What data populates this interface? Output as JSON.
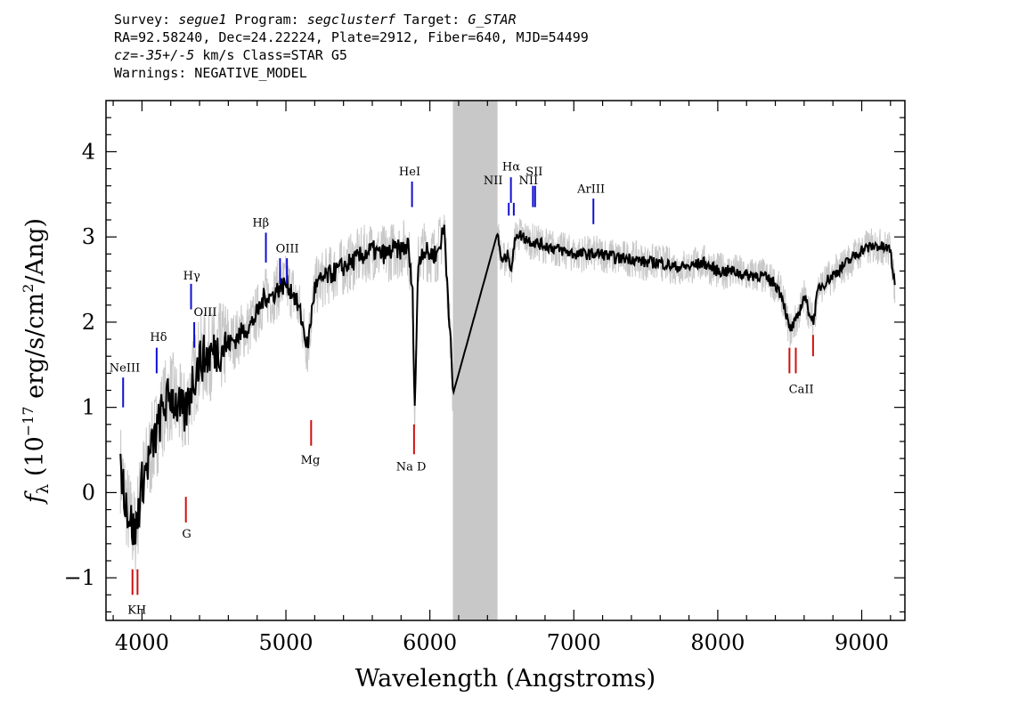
{
  "header": {
    "survey_label": "Survey:",
    "survey": "segue1",
    "program_label": "Program:",
    "program": "segclusterf",
    "target_label": "Target:",
    "target": "G_STAR",
    "line2": "RA=92.58240, Dec=24.22224, Plate=2912, Fiber=640, MJD=54499",
    "cz_label": "cz",
    "cz_value": "=-35+/-5",
    "cz_units": " km/s Class=STAR G5",
    "warnings": "Warnings: NEGATIVE_MODEL"
  },
  "chart_data": {
    "type": "line",
    "xlabel": "Wavelength (Angstroms)",
    "ylabel": "fλ (10^-17 erg/s/cm^2/Ang)",
    "xlim": [
      3750,
      9300
    ],
    "ylim": [
      -1.5,
      4.6
    ],
    "xticks": [
      4000,
      5000,
      6000,
      7000,
      8000,
      9000
    ],
    "yticks": [
      -1,
      0,
      1,
      2,
      3,
      4
    ],
    "grid": false,
    "masked_region": [
      6160,
      6470
    ],
    "colors": {
      "flux": "#c8c8c8",
      "model": "#000000",
      "mask": "#c8c8c8",
      "emission": "#1010d0",
      "absorption": "#d01010"
    },
    "series": [
      {
        "x": [
          3850,
          3900,
          3950,
          4000,
          4050,
          4100,
          4150,
          4200,
          4250,
          4300,
          4350,
          4400,
          4450,
          4500,
          4550,
          4600,
          4650,
          4700,
          4750,
          4800,
          4850,
          4900,
          4950,
          5000,
          5050,
          5100,
          5150,
          5200,
          5250,
          5300,
          5350,
          5400,
          5450,
          5500,
          5550,
          5600,
          5650,
          5700,
          5750,
          5800,
          5850,
          5880,
          5895,
          5920,
          5950,
          6000,
          6050,
          6100,
          6140,
          6160,
          6470,
          6500,
          6550,
          6563,
          6600,
          6700,
          6800,
          6900,
          7000,
          7100,
          7200,
          7300,
          7400,
          7500,
          7600,
          7700,
          7800,
          7900,
          8000,
          8100,
          8200,
          8300,
          8400,
          8450,
          8498,
          8542,
          8600,
          8662,
          8700,
          8800,
          8900,
          9000,
          9100,
          9200,
          9230
        ],
        "y": [
          0.3,
          -0.2,
          -0.5,
          0.1,
          0.4,
          0.7,
          1.0,
          1.15,
          1.0,
          0.9,
          1.3,
          1.55,
          1.6,
          1.65,
          1.7,
          1.75,
          1.8,
          1.9,
          1.95,
          2.1,
          2.3,
          2.3,
          2.4,
          2.45,
          2.35,
          2.1,
          1.7,
          2.4,
          2.5,
          2.55,
          2.6,
          2.65,
          2.7,
          2.75,
          2.8,
          2.85,
          2.8,
          2.8,
          2.85,
          2.85,
          2.9,
          2.3,
          1.0,
          2.7,
          2.85,
          2.8,
          2.8,
          3.1,
          1.9,
          1.15,
          3.05,
          2.7,
          2.8,
          2.6,
          3.05,
          2.95,
          2.9,
          2.85,
          2.8,
          2.8,
          2.8,
          2.75,
          2.75,
          2.7,
          2.7,
          2.65,
          2.65,
          2.7,
          2.6,
          2.6,
          2.55,
          2.55,
          2.45,
          2.3,
          1.9,
          2.0,
          2.3,
          2.0,
          2.4,
          2.55,
          2.7,
          2.85,
          2.9,
          2.85,
          2.4
        ]
      }
    ],
    "line_markers": [
      {
        "name": "NeIII",
        "x": 3869,
        "type": "emission",
        "ybar": [
          1.0,
          1.35
        ]
      },
      {
        "name": "Hδ",
        "x": 4102,
        "type": "emission",
        "ybar": [
          1.4,
          1.7
        ]
      },
      {
        "name": "Hγ",
        "x": 4341,
        "type": "emission",
        "ybar": [
          2.15,
          2.45
        ]
      },
      {
        "name": "OIII",
        "x": 4363,
        "type": "emission",
        "ybar": [
          1.7,
          2.0
        ]
      },
      {
        "name": "Hβ",
        "x": 4861,
        "type": "emission",
        "ybar": [
          2.7,
          3.05
        ]
      },
      {
        "name": "OIII",
        "x": 4959,
        "type": "emission",
        "ybar": [
          2.45,
          2.75
        ]
      },
      {
        "name": "OIII",
        "x": 5007,
        "type": "emission",
        "ybar": [
          2.45,
          2.75
        ]
      },
      {
        "name": "HeI",
        "x": 5876,
        "type": "emission",
        "ybar": [
          3.35,
          3.65
        ]
      },
      {
        "name": "NII",
        "x": 6548,
        "type": "emission",
        "ybar": [
          3.25,
          3.4
        ]
      },
      {
        "name": "Hα",
        "x": 6563,
        "type": "emission",
        "ybar": [
          3.4,
          3.7
        ]
      },
      {
        "name": "NII",
        "x": 6583,
        "type": "emission",
        "ybar": [
          3.25,
          3.4
        ]
      },
      {
        "name": "SII",
        "x": 6716,
        "type": "emission",
        "ybar": [
          3.35,
          3.6
        ]
      },
      {
        "name": "SII",
        "x": 6731,
        "type": "emission",
        "ybar": [
          3.35,
          3.6
        ]
      },
      {
        "name": "ArIII",
        "x": 7136,
        "type": "emission",
        "ybar": [
          3.15,
          3.45
        ]
      },
      {
        "name": "K",
        "x": 3934,
        "type": "absorption",
        "ybar": [
          -1.2,
          -0.9
        ]
      },
      {
        "name": "H",
        "x": 3969,
        "type": "absorption",
        "ybar": [
          -1.2,
          -0.9
        ]
      },
      {
        "name": "G",
        "x": 4305,
        "type": "absorption",
        "ybar": [
          -0.35,
          -0.05
        ]
      },
      {
        "name": "Mg",
        "x": 5175,
        "type": "absorption",
        "ybar": [
          0.55,
          0.85
        ]
      },
      {
        "name": "Na",
        "x": 5890,
        "type": "absorption",
        "ybar": [
          0.45,
          0.8
        ]
      },
      {
        "name": "CaII",
        "x": 8498,
        "type": "absorption",
        "ybar": [
          1.4,
          1.7
        ]
      },
      {
        "name": "CaII",
        "x": 8542,
        "type": "absorption",
        "ybar": [
          1.4,
          1.7
        ]
      },
      {
        "name": "CaII",
        "x": 8662,
        "type": "absorption",
        "ybar": [
          1.6,
          1.85
        ]
      }
    ],
    "annotations": [
      {
        "text": "NeIII",
        "x": 3880,
        "y": 1.42
      },
      {
        "text": "Hδ",
        "x": 4115,
        "y": 1.78
      },
      {
        "text": "Hγ",
        "x": 4345,
        "y": 2.5
      },
      {
        "text": "OIII",
        "x": 4440,
        "y": 2.07
      },
      {
        "text": "Hβ",
        "x": 4825,
        "y": 3.12
      },
      {
        "text": "OIII",
        "x": 5010,
        "y": 2.82
      },
      {
        "text": "HeI",
        "x": 5860,
        "y": 3.72
      },
      {
        "text": "NII",
        "x": 6440,
        "y": 3.62
      },
      {
        "text": "Hα",
        "x": 6565,
        "y": 3.78
      },
      {
        "text": "NII",
        "x": 6685,
        "y": 3.62
      },
      {
        "text": "SII",
        "x": 6725,
        "y": 3.72
      },
      {
        "text": "ArIII",
        "x": 7120,
        "y": 3.52
      },
      {
        "text": "KH",
        "x": 3965,
        "y": -1.42
      },
      {
        "text": "G",
        "x": 4310,
        "y": -0.53
      },
      {
        "text": "Mg",
        "x": 5170,
        "y": 0.34
      },
      {
        "text": "Na D",
        "x": 5870,
        "y": 0.26
      },
      {
        "text": "CaII",
        "x": 8580,
        "y": 1.17
      }
    ]
  }
}
